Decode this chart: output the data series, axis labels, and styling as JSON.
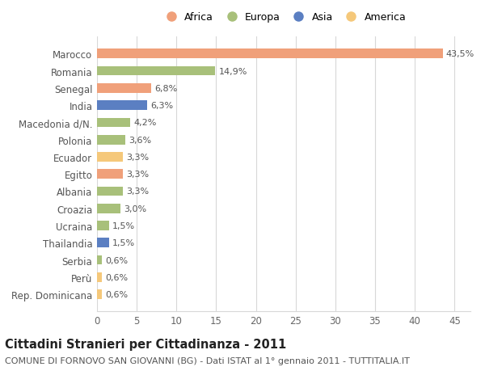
{
  "categories": [
    "Rep. Dominicana",
    "Perù",
    "Serbia",
    "Thailandia",
    "Ucraina",
    "Croazia",
    "Albania",
    "Egitto",
    "Ecuador",
    "Polonia",
    "Macedonia d/N.",
    "India",
    "Senegal",
    "Romania",
    "Marocco"
  ],
  "values": [
    0.6,
    0.6,
    0.6,
    1.5,
    1.5,
    3.0,
    3.3,
    3.3,
    3.3,
    3.6,
    4.2,
    6.3,
    6.8,
    14.9,
    43.5
  ],
  "labels": [
    "0,6%",
    "0,6%",
    "0,6%",
    "1,5%",
    "1,5%",
    "3,0%",
    "3,3%",
    "3,3%",
    "3,3%",
    "3,6%",
    "4,2%",
    "6,3%",
    "6,8%",
    "14,9%",
    "43,5%"
  ],
  "colors": [
    "#f5c87a",
    "#f5c87a",
    "#a8c07a",
    "#5b7fc2",
    "#a8c07a",
    "#a8c07a",
    "#a8c07a",
    "#f0a07a",
    "#f5c87a",
    "#a8c07a",
    "#a8c07a",
    "#5b7fc2",
    "#f0a07a",
    "#a8c07a",
    "#f0a07a"
  ],
  "legend_labels": [
    "Africa",
    "Europa",
    "Asia",
    "America"
  ],
  "legend_colors": [
    "#f0a07a",
    "#a8c07a",
    "#5b7fc2",
    "#f5c87a"
  ],
  "title": "Cittadini Stranieri per Cittadinanza - 2011",
  "subtitle": "COMUNE DI FORNOVO SAN GIOVANNI (BG) - Dati ISTAT al 1° gennaio 2011 - TUTTITALIA.IT",
  "xlim": [
    0,
    47
  ],
  "xticks": [
    0,
    5,
    10,
    15,
    20,
    25,
    30,
    35,
    40,
    45
  ],
  "bg_color": "#ffffff",
  "plot_bg_color": "#ffffff",
  "grid_color": "#d8d8d8",
  "bar_height": 0.55,
  "title_fontsize": 10.5,
  "subtitle_fontsize": 8,
  "label_fontsize": 8,
  "tick_fontsize": 8.5
}
